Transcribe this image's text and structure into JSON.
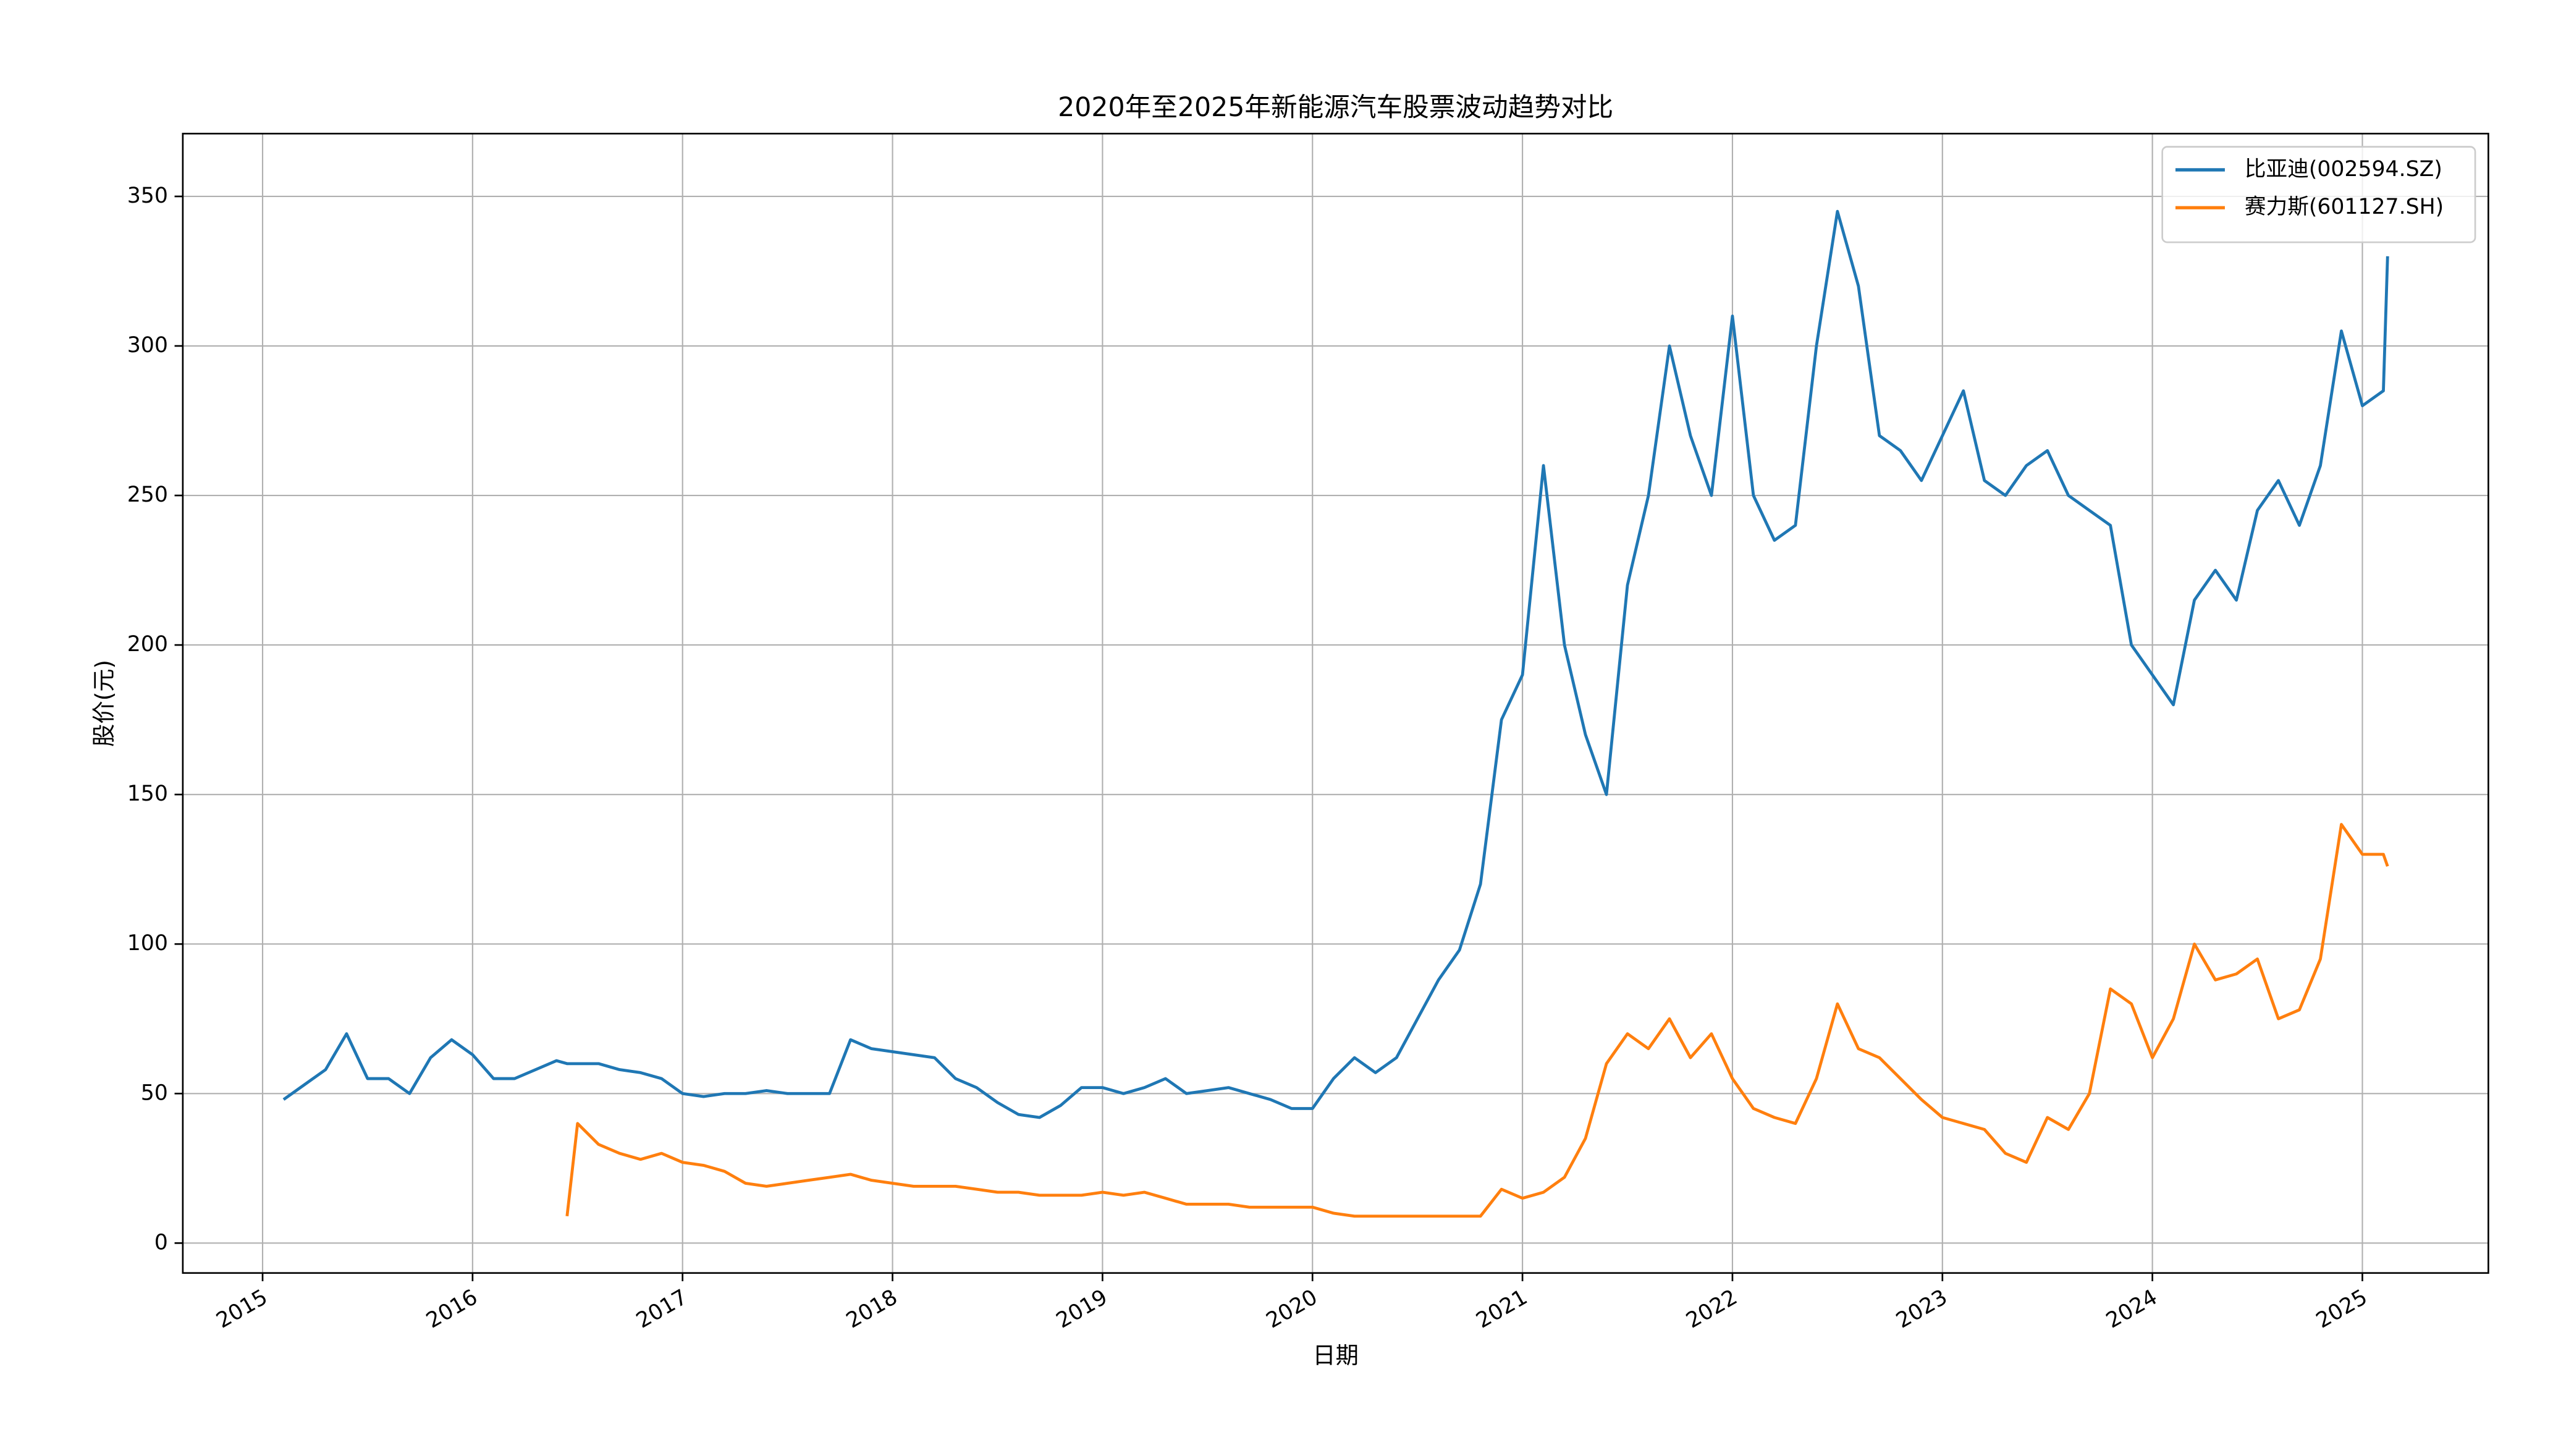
{
  "chart_data": {
    "type": "line",
    "title": "2020年至2025年新能源汽车股票波动趋势对比",
    "x_label": "日期",
    "y_label": "股价(元)",
    "x": [
      2015.1,
      2015.2,
      2015.3,
      2015.4,
      2015.5,
      2015.6,
      2015.7,
      2015.8,
      2015.9,
      2016.0,
      2016.1,
      2016.2,
      2016.3,
      2016.4,
      2016.45,
      2016.5,
      2016.6,
      2016.7,
      2016.8,
      2016.9,
      2017.0,
      2017.1,
      2017.2,
      2017.3,
      2017.4,
      2017.5,
      2017.6,
      2017.7,
      2017.8,
      2017.9,
      2018.0,
      2018.1,
      2018.2,
      2018.3,
      2018.4,
      2018.5,
      2018.6,
      2018.7,
      2018.8,
      2018.9,
      2019.0,
      2019.1,
      2019.2,
      2019.3,
      2019.4,
      2019.5,
      2019.6,
      2019.7,
      2019.8,
      2019.9,
      2020.0,
      2020.1,
      2020.2,
      2020.3,
      2020.4,
      2020.5,
      2020.6,
      2020.7,
      2020.8,
      2020.9,
      2021.0,
      2021.1,
      2021.2,
      2021.3,
      2021.4,
      2021.5,
      2021.6,
      2021.7,
      2021.8,
      2021.9,
      2022.0,
      2022.1,
      2022.2,
      2022.3,
      2022.4,
      2022.5,
      2022.6,
      2022.7,
      2022.8,
      2022.9,
      2023.0,
      2023.1,
      2023.2,
      2023.3,
      2023.4,
      2023.5,
      2023.6,
      2023.7,
      2023.8,
      2023.9,
      2024.0,
      2024.1,
      2024.2,
      2024.3,
      2024.4,
      2024.5,
      2024.6,
      2024.7,
      2024.8,
      2024.9,
      2025.0,
      2025.1,
      2025.12
    ],
    "series": [
      {
        "name": "比亚迪(002594.SZ)",
        "color": "#1f77b4",
        "values": [
          48,
          53,
          58,
          70,
          55,
          55,
          50,
          62,
          68,
          63,
          55,
          55,
          58,
          61,
          60,
          60,
          60,
          58,
          57,
          55,
          50,
          49,
          50,
          50,
          51,
          50,
          50,
          50,
          68,
          65,
          64,
          63,
          62,
          55,
          52,
          47,
          43,
          42,
          46,
          52,
          52,
          50,
          52,
          55,
          50,
          51,
          52,
          50,
          48,
          45,
          45,
          55,
          62,
          57,
          62,
          75,
          88,
          98,
          120,
          175,
          190,
          260,
          200,
          170,
          150,
          220,
          250,
          300,
          270,
          250,
          310,
          250,
          235,
          240,
          300,
          345,
          320,
          270,
          265,
          255,
          270,
          285,
          255,
          250,
          260,
          265,
          250,
          245,
          240,
          200,
          190,
          180,
          215,
          225,
          215,
          245,
          255,
          240,
          260,
          305,
          280,
          285,
          330
        ]
      },
      {
        "name": "赛力斯(601127.SH)",
        "color": "#ff7f0e",
        "values": [
          null,
          null,
          null,
          null,
          null,
          null,
          null,
          null,
          null,
          null,
          null,
          null,
          null,
          null,
          9,
          40,
          33,
          30,
          28,
          30,
          27,
          26,
          24,
          20,
          19,
          20,
          21,
          22,
          23,
          21,
          20,
          19,
          19,
          19,
          18,
          17,
          17,
          16,
          16,
          16,
          17,
          16,
          17,
          15,
          13,
          13,
          13,
          12,
          12,
          12,
          12,
          10,
          9,
          9,
          9,
          9,
          9,
          9,
          9,
          18,
          15,
          17,
          22,
          35,
          60,
          70,
          65,
          75,
          62,
          70,
          55,
          45,
          42,
          40,
          55,
          80,
          65,
          62,
          55,
          48,
          42,
          40,
          38,
          30,
          27,
          42,
          38,
          50,
          85,
          80,
          62,
          75,
          100,
          88,
          90,
          95,
          75,
          78,
          95,
          140,
          130,
          130,
          126
        ]
      }
    ],
    "xlim": [
      2014.62,
      2025.6
    ],
    "xticks": [
      2015,
      2016,
      2017,
      2018,
      2019,
      2020,
      2021,
      2022,
      2023,
      2024,
      2025
    ],
    "ylim": [
      -10,
      371
    ],
    "yticks": [
      0,
      50,
      100,
      150,
      200,
      250,
      300,
      350
    ],
    "grid": true,
    "legend": "upper right"
  }
}
